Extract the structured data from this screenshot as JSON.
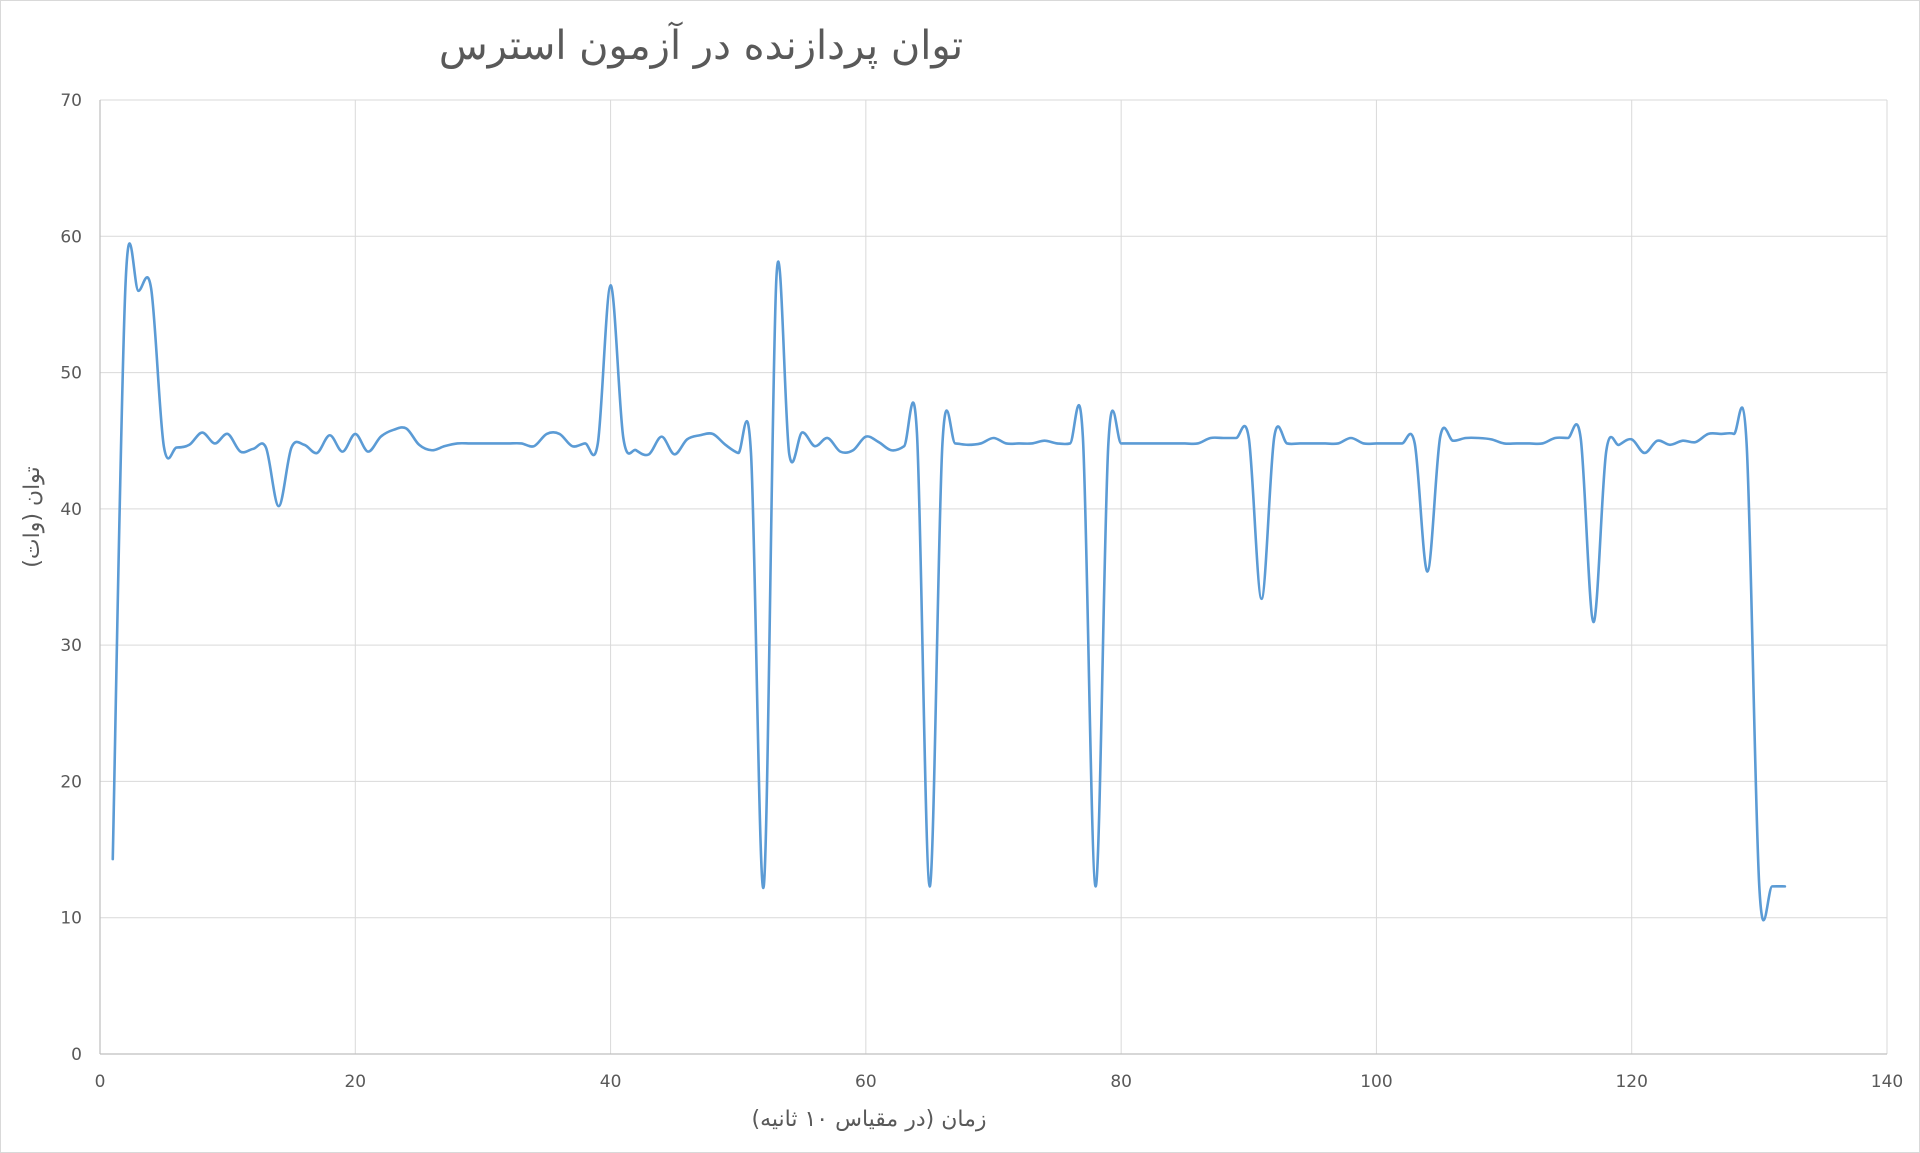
{
  "chart_data": {
    "type": "line",
    "title": "توان پردازنده در آزمون استرس",
    "xlabel": "زمان (در مقیاس ۱۰ ثانیه)",
    "ylabel": "توان (وات)",
    "xlim": [
      0,
      140
    ],
    "ylim": [
      0,
      70
    ],
    "x_ticks": [
      0,
      20,
      40,
      60,
      80,
      100,
      120,
      140
    ],
    "y_ticks": [
      0,
      10,
      20,
      30,
      40,
      50,
      60,
      70
    ],
    "grid": true,
    "legend": "none",
    "series": [
      {
        "color": "#5b9bd5",
        "x": [
          1,
          2,
          3,
          4,
          5,
          6,
          7,
          8,
          9,
          10,
          11,
          12,
          13,
          14,
          15,
          16,
          17,
          18,
          19,
          20,
          21,
          22,
          23,
          24,
          25,
          26,
          27,
          28,
          29,
          30,
          31,
          32,
          33,
          34,
          35,
          36,
          37,
          38,
          39,
          40,
          41,
          42,
          43,
          44,
          45,
          46,
          47,
          48,
          49,
          50,
          51,
          52,
          53,
          54,
          55,
          56,
          57,
          58,
          59,
          60,
          61,
          62,
          63,
          64,
          65,
          66,
          67,
          68,
          69,
          70,
          71,
          72,
          73,
          74,
          75,
          76,
          77,
          78,
          79,
          80,
          81,
          82,
          83,
          84,
          85,
          86,
          87,
          88,
          89,
          90,
          91,
          92,
          93,
          94,
          95,
          96,
          97,
          98,
          99,
          100,
          101,
          102,
          103,
          104,
          105,
          106,
          107,
          108,
          109,
          110,
          111,
          112,
          113,
          114,
          115,
          116,
          117,
          118,
          119,
          120,
          121,
          122,
          123,
          124,
          125,
          126,
          127,
          128,
          129,
          130,
          131,
          132
        ],
        "y": [
          14.3,
          56.5,
          56.0,
          56.2,
          44.6,
          44.5,
          44.7,
          45.6,
          44.8,
          45.5,
          44.2,
          44.4,
          44.5,
          40.2,
          44.5,
          44.7,
          44.1,
          45.4,
          44.2,
          45.5,
          44.2,
          45.3,
          45.8,
          45.9,
          44.7,
          44.3,
          44.6,
          44.8,
          44.8,
          44.8,
          44.8,
          44.8,
          44.8,
          44.6,
          45.5,
          45.5,
          44.6,
          44.8,
          44.8,
          56.4,
          45.2,
          44.3,
          44.0,
          45.3,
          44.0,
          45.1,
          45.4,
          45.5,
          44.7,
          44.1,
          44.1,
          12.3,
          57.1,
          44.0,
          45.6,
          44.6,
          45.2,
          44.2,
          44.3,
          45.3,
          44.9,
          44.3,
          44.6,
          45.6,
          12.3,
          44.8,
          44.8,
          44.7,
          44.8,
          45.2,
          44.8,
          44.8,
          44.8,
          45.0,
          44.8,
          44.8,
          45.3,
          12.3,
          44.8,
          44.8,
          44.8,
          44.8,
          44.8,
          44.8,
          44.8,
          44.8,
          45.2,
          45.2,
          45.2,
          45.2,
          33.4,
          45.3,
          44.8,
          44.8,
          44.8,
          44.8,
          44.8,
          45.2,
          44.8,
          44.8,
          44.8,
          44.8,
          44.8,
          35.4,
          45.3,
          45.0,
          45.2,
          45.2,
          45.1,
          44.8,
          44.8,
          44.8,
          44.8,
          45.2,
          45.2,
          45.2,
          31.7,
          44.2,
          44.7,
          45.1,
          44.1,
          45.0,
          44.7,
          45.0,
          44.9,
          45.5,
          45.5,
          45.5,
          44.8,
          12.2,
          12.3,
          12.3
        ]
      }
    ]
  }
}
